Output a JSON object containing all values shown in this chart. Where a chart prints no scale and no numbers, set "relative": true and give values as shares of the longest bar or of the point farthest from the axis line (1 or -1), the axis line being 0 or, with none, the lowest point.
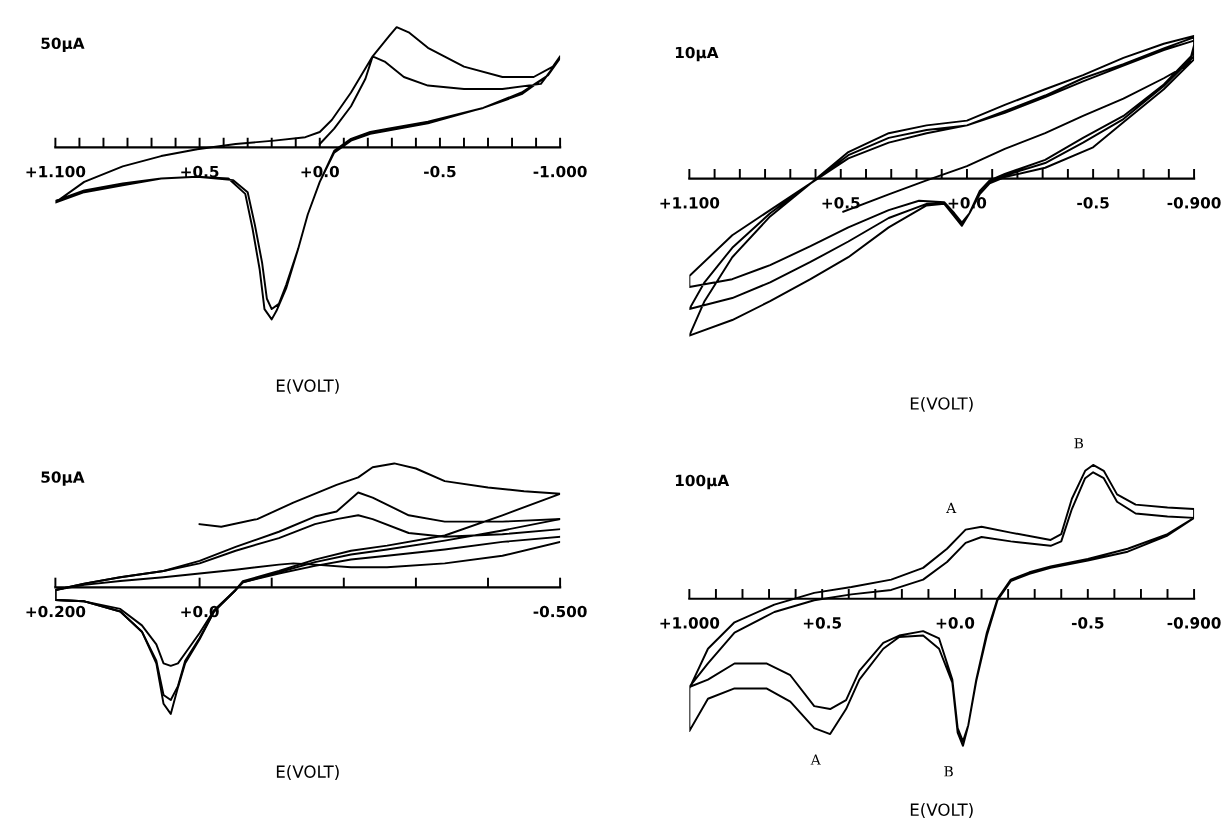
{
  "chart_data": [
    {
      "type": "line",
      "relative": true,
      "xlabel": "E(VOLT)",
      "xlim": [
        1.1,
        -1.0
      ],
      "xticks": [
        {
          "value": 1.1,
          "label": "+1.100"
        },
        {
          "value": 1.0,
          "label": null
        },
        {
          "value": 0.9,
          "label": null
        },
        {
          "value": 0.8,
          "label": null
        },
        {
          "value": 0.7,
          "label": null
        },
        {
          "value": 0.6,
          "label": null
        },
        {
          "value": 0.5,
          "label": "+0.5"
        },
        {
          "value": 0.4,
          "label": null
        },
        {
          "value": 0.3,
          "label": null
        },
        {
          "value": 0.2,
          "label": null
        },
        {
          "value": 0.1,
          "label": null
        },
        {
          "value": 0.0,
          "label": "+0.0"
        },
        {
          "value": -0.1,
          "label": null
        },
        {
          "value": -0.2,
          "label": null
        },
        {
          "value": -0.3,
          "label": null
        },
        {
          "value": -0.4,
          "label": null
        },
        {
          "value": -0.5,
          "label": "-0.5"
        },
        {
          "value": -0.6,
          "label": null
        },
        {
          "value": -0.7,
          "label": null
        },
        {
          "value": -0.8,
          "label": null
        },
        {
          "value": -0.9,
          "label": null
        },
        {
          "value": -1.0,
          "label": "-1.000"
        }
      ],
      "annotations": [
        "50µA"
      ],
      "series": [
        {
          "color": "#000000",
          "x": [
            0.0,
            -0.06,
            -0.13,
            -0.19,
            -0.22,
            -0.27,
            -0.35,
            -0.45,
            -0.6,
            -0.76,
            -0.92,
            -1.0,
            -0.95,
            -0.84,
            -0.68,
            -0.45,
            -0.29,
            -0.21,
            -0.13,
            -0.06,
            0.0,
            0.05,
            0.09,
            0.14,
            0.17,
            0.2,
            0.22,
            0.24,
            0.27,
            0.3,
            0.36,
            0.51,
            0.66,
            0.82,
            0.98,
            1.1,
            0.98,
            0.82,
            0.66,
            0.51,
            0.35,
            0.19,
            0.06,
            0.0,
            -0.05,
            -0.13,
            -0.22,
            -0.29,
            -0.32,
            -0.37,
            -0.45,
            -0.6,
            -0.76,
            -0.89,
            -0.97,
            -1.0,
            -0.95,
            -0.84,
            -0.68,
            -0.45,
            -0.29,
            -0.21,
            -0.13,
            -0.06,
            0.0,
            0.05,
            0.09,
            0.14,
            0.18,
            0.2,
            0.23,
            0.25,
            0.28,
            0.31,
            0.38,
            0.51,
            0.66,
            0.82,
            0.98,
            1.1
          ],
          "values": [
            0.02,
            0.11,
            0.24,
            0.4,
            0.53,
            0.5,
            0.41,
            0.36,
            0.34,
            0.34,
            0.37,
            0.52,
            0.42,
            0.31,
            0.23,
            0.14,
            0.1,
            0.08,
            0.04,
            -0.03,
            -0.2,
            -0.39,
            -0.59,
            -0.8,
            -0.91,
            -0.94,
            -0.88,
            -0.67,
            -0.45,
            -0.26,
            -0.19,
            -0.17,
            -0.18,
            -0.22,
            -0.26,
            -0.32,
            -0.2,
            -0.11,
            -0.05,
            -0.01,
            0.02,
            0.04,
            0.06,
            0.09,
            0.16,
            0.32,
            0.53,
            0.65,
            0.7,
            0.67,
            0.58,
            0.47,
            0.41,
            0.41,
            0.47,
            0.53,
            0.42,
            0.32,
            0.23,
            0.15,
            0.11,
            0.09,
            0.05,
            -0.02,
            -0.2,
            -0.39,
            -0.59,
            -0.82,
            -0.95,
            -1.0,
            -0.94,
            -0.71,
            -0.47,
            -0.27,
            -0.18,
            -0.17,
            -0.18,
            -0.21,
            -0.25,
            -0.31
          ]
        }
      ]
    },
    {
      "type": "line",
      "relative": true,
      "xlabel": "E(VOLT)",
      "xlim": [
        1.1,
        -0.9
      ],
      "xticks": [
        {
          "value": 1.1,
          "label": "+1.100"
        },
        {
          "value": 1.0,
          "label": null
        },
        {
          "value": 0.9,
          "label": null
        },
        {
          "value": 0.8,
          "label": null
        },
        {
          "value": 0.7,
          "label": null
        },
        {
          "value": 0.6,
          "label": null
        },
        {
          "value": 0.5,
          "label": "+0.5"
        },
        {
          "value": 0.4,
          "label": null
        },
        {
          "value": 0.3,
          "label": null
        },
        {
          "value": 0.2,
          "label": null
        },
        {
          "value": 0.1,
          "label": null
        },
        {
          "value": 0.0,
          "label": "+0.0"
        },
        {
          "value": -0.1,
          "label": null
        },
        {
          "value": -0.2,
          "label": null
        },
        {
          "value": -0.3,
          "label": null
        },
        {
          "value": -0.4,
          "label": null
        },
        {
          "value": -0.5,
          "label": "-0.5"
        },
        {
          "value": -0.6,
          "label": null
        },
        {
          "value": -0.7,
          "label": null
        },
        {
          "value": -0.8,
          "label": null
        },
        {
          "value": -0.9,
          "label": "-0.900"
        }
      ],
      "annotations": [
        "10µA"
      ],
      "series": [
        {
          "color": "#000000",
          "x": [
            0.49,
            0.31,
            0.16,
            0.0,
            -0.15,
            -0.31,
            -0.46,
            -0.62,
            -0.78,
            -0.88,
            -0.9,
            -0.9,
            -0.78,
            -0.62,
            -0.5,
            -0.31,
            -0.15,
            -0.09,
            -0.05,
            -0.01,
            0.02,
            0.05,
            0.09,
            0.19,
            0.31,
            0.47,
            0.62,
            0.78,
            0.93,
            1.1,
            1.1,
            0.93,
            0.78,
            0.62,
            0.47,
            0.31,
            0.16,
            0.0,
            -0.15,
            -0.31,
            -0.46,
            -0.62,
            -0.78,
            -0.9,
            -0.9,
            -0.78,
            -0.62,
            -0.46,
            -0.31,
            -0.15,
            -0.09,
            -0.05,
            -0.01,
            0.02,
            0.05,
            0.09,
            0.16,
            0.31,
            0.47,
            0.62,
            0.78,
            0.93,
            1.1,
            1.04,
            0.93,
            0.78,
            0.62,
            0.47,
            0.31,
            0.16,
            0.0,
            -0.15,
            -0.31,
            -0.46,
            -0.62,
            -0.78,
            -0.9,
            -0.9,
            -0.78,
            -0.62,
            -0.46,
            -0.31,
            -0.15,
            -0.09,
            -0.05,
            -0.01,
            0.02,
            0.05,
            0.09,
            0.16,
            0.31,
            0.47,
            0.62,
            0.78,
            0.93,
            1.1,
            1.04,
            0.93,
            0.78,
            0.62,
            0.47,
            0.31,
            0.16,
            0.0,
            -0.15,
            -0.31,
            -0.46,
            -0.62,
            -0.78,
            -0.9
          ],
          "values": [
            -0.21,
            -0.1,
            -0.01,
            0.08,
            0.19,
            0.29,
            0.4,
            0.51,
            0.64,
            0.73,
            0.85,
            0.76,
            0.57,
            0.36,
            0.2,
            0.07,
            0.01,
            -0.03,
            -0.1,
            -0.22,
            -0.28,
            -0.22,
            -0.15,
            -0.14,
            -0.2,
            -0.31,
            -0.43,
            -0.55,
            -0.64,
            -0.69,
            -0.62,
            -0.36,
            -0.2,
            -0.03,
            0.13,
            0.23,
            0.29,
            0.34,
            0.43,
            0.53,
            0.64,
            0.73,
            0.83,
            0.9,
            0.78,
            0.59,
            0.38,
            0.23,
            0.1,
            0.02,
            -0.02,
            -0.09,
            -0.22,
            -0.29,
            -0.23,
            -0.15,
            -0.16,
            -0.25,
            -0.4,
            -0.53,
            -0.66,
            -0.76,
            -0.83,
            -0.66,
            -0.44,
            -0.22,
            -0.03,
            0.15,
            0.26,
            0.31,
            0.34,
            0.42,
            0.52,
            0.62,
            0.72,
            0.82,
            0.88,
            0.8,
            0.6,
            0.4,
            0.26,
            0.12,
            0.03,
            -0.01,
            -0.08,
            -0.22,
            -0.3,
            -0.24,
            -0.16,
            -0.17,
            -0.31,
            -0.5,
            -0.64,
            -0.78,
            -0.9,
            -1.0,
            -0.78,
            -0.5,
            -0.24,
            -0.03,
            0.17,
            0.29,
            0.34,
            0.37,
            0.47,
            0.57,
            0.66,
            0.77,
            0.86,
            0.91
          ]
        }
      ]
    },
    {
      "type": "line",
      "relative": true,
      "xlabel": "E(VOLT)",
      "xlim": [
        0.2,
        -0.5
      ],
      "xticks": [
        {
          "value": 0.2,
          "label": "+0.200"
        },
        {
          "value": 0.0,
          "label": "+0.0"
        },
        {
          "value": -0.1,
          "label": null
        },
        {
          "value": -0.2,
          "label": null
        },
        {
          "value": -0.3,
          "label": null
        },
        {
          "value": -0.4,
          "label": null
        },
        {
          "value": -0.5,
          "label": "-0.500"
        }
      ],
      "annotations": [
        "50µA"
      ],
      "series": [
        {
          "color": "#000000",
          "x": [
            0.0,
            -0.03,
            -0.08,
            -0.13,
            -0.19,
            -0.22,
            -0.24,
            -0.27,
            -0.3,
            -0.34,
            -0.4,
            -0.45,
            -0.5,
            -0.42,
            -0.34,
            -0.26,
            -0.21,
            -0.16,
            -0.11,
            -0.06,
            -0.05,
            -0.02,
            0.0,
            0.02,
            0.03,
            0.04,
            0.05,
            0.06,
            0.08,
            0.11,
            0.16,
            0.2,
            0.2,
            0.16,
            0.11,
            0.05,
            0.0,
            -0.05,
            -0.11,
            -0.16,
            -0.19,
            -0.22,
            -0.24,
            -0.29,
            -0.34,
            -0.42,
            -0.5
          ],
          "values": [
            0.5,
            0.48,
            0.54,
            0.67,
            0.81,
            0.87,
            0.95,
            0.98,
            0.94,
            0.84,
            0.79,
            0.76,
            0.74,
            0.57,
            0.41,
            0.33,
            0.29,
            0.22,
            0.13,
            0.05,
            -0.02,
            -0.19,
            -0.41,
            -0.6,
            -0.79,
            -1.0,
            -0.92,
            -0.6,
            -0.35,
            -0.19,
            -0.11,
            -0.1,
            -0.02,
            0.03,
            0.08,
            0.13,
            0.21,
            0.32,
            0.44,
            0.56,
            0.6,
            0.75,
            0.71,
            0.57,
            0.52,
            0.52,
            0.54
          ]
        },
        {
          "color": "#000000",
          "x": [
            -0.5,
            -0.42,
            -0.34,
            -0.26,
            -0.21,
            -0.16,
            -0.11,
            -0.06,
            -0.05,
            -0.02,
            0.0,
            0.02,
            0.03,
            0.04,
            0.05,
            0.06,
            0.08,
            0.11,
            0.16,
            0.2,
            0.2,
            0.16,
            0.11,
            0.05,
            0.0,
            -0.05,
            -0.11,
            -0.16,
            -0.19,
            -0.22,
            -0.24,
            -0.29,
            -0.34,
            -0.42,
            -0.5
          ],
          "values": [
            0.54,
            0.45,
            0.37,
            0.3,
            0.26,
            0.2,
            0.12,
            0.04,
            -0.02,
            -0.19,
            -0.4,
            -0.58,
            -0.78,
            -0.89,
            -0.85,
            -0.58,
            -0.35,
            -0.19,
            -0.11,
            -0.1,
            -0.02,
            0.03,
            0.08,
            0.13,
            0.19,
            0.29,
            0.39,
            0.5,
            0.54,
            0.57,
            0.54,
            0.43,
            0.4,
            0.42,
            0.46
          ]
        },
        {
          "color": "#000000",
          "x": [
            -0.5,
            -0.42,
            -0.34,
            -0.26,
            -0.21,
            -0.16,
            -0.11,
            -0.06,
            -0.05,
            -0.02,
            0.0,
            0.02,
            0.03,
            0.04,
            0.05,
            0.06,
            0.08,
            0.11,
            0.16,
            0.2,
            0.2,
            0.16,
            0.11,
            0.05,
            0.0,
            -0.05,
            -0.11,
            -0.13,
            -0.16,
            -0.21,
            -0.26,
            -0.34,
            -0.42,
            -0.5
          ],
          "values": [
            0.4,
            0.36,
            0.3,
            0.25,
            0.22,
            0.17,
            0.11,
            0.04,
            -0.02,
            -0.18,
            -0.36,
            -0.52,
            -0.6,
            -0.62,
            -0.6,
            -0.45,
            -0.3,
            -0.17,
            -0.11,
            -0.1,
            -0.02,
            0.02,
            0.05,
            0.08,
            0.11,
            0.14,
            0.18,
            0.19,
            0.18,
            0.16,
            0.16,
            0.19,
            0.25,
            0.36
          ]
        }
      ]
    },
    {
      "type": "line",
      "relative": true,
      "xlabel": "E(VOLT)",
      "xlim": [
        1.0,
        -0.9
      ],
      "xticks": [
        {
          "value": 1.0,
          "label": "+1.000"
        },
        {
          "value": 0.9,
          "label": null
        },
        {
          "value": 0.8,
          "label": null
        },
        {
          "value": 0.7,
          "label": null
        },
        {
          "value": 0.6,
          "label": null
        },
        {
          "value": 0.5,
          "label": "+0.5"
        },
        {
          "value": 0.4,
          "label": null
        },
        {
          "value": 0.3,
          "label": null
        },
        {
          "value": 0.2,
          "label": null
        },
        {
          "value": 0.1,
          "label": null
        },
        {
          "value": 0.0,
          "label": "+0.0"
        },
        {
          "value": -0.1,
          "label": null
        },
        {
          "value": -0.2,
          "label": null
        },
        {
          "value": -0.3,
          "label": null
        },
        {
          "value": -0.4,
          "label": null
        },
        {
          "value": -0.5,
          "label": "-0.5"
        },
        {
          "value": -0.6,
          "label": null
        },
        {
          "value": -0.7,
          "label": null
        },
        {
          "value": -0.8,
          "label": null
        },
        {
          "value": -0.9,
          "label": "-0.900"
        }
      ],
      "annotations": [
        "100µA",
        {
          "text": "A",
          "x": -0.04,
          "y": 0.47
        },
        {
          "text": "B",
          "x": -0.52,
          "y": 0.91
        },
        {
          "text": "A",
          "x": 0.47,
          "y": -0.92
        },
        {
          "text": "B",
          "x": -0.03,
          "y": -1.0
        }
      ],
      "series": [
        {
          "color": "#000000",
          "x": [
            1.0,
            0.93,
            0.83,
            0.68,
            0.53,
            0.39,
            0.24,
            0.12,
            0.03,
            -0.04,
            -0.1,
            -0.21,
            -0.36,
            -0.4,
            -0.44,
            -0.49,
            -0.52,
            -0.56,
            -0.61,
            -0.68,
            -0.8,
            -0.9,
            -0.9,
            -0.8,
            -0.65,
            -0.5,
            -0.36,
            -0.28,
            -0.21,
            -0.16,
            -0.12,
            -0.08,
            -0.05,
            -0.03,
            -0.01,
            0.01,
            0.06,
            0.12,
            0.21,
            0.27,
            0.36,
            0.41,
            0.47,
            0.53,
            0.62,
            0.71,
            0.83,
            0.93,
            1.0,
            1.0,
            0.93,
            0.83,
            0.68,
            0.53,
            0.39,
            0.24,
            0.12,
            0.03,
            -0.04,
            -0.1,
            -0.21,
            -0.36,
            -0.4,
            -0.44,
            -0.49,
            -0.52,
            -0.56,
            -0.61,
            -0.68,
            -0.8,
            -0.9,
            -0.8,
            -0.65,
            -0.5,
            -0.36,
            -0.28,
            -0.21,
            -0.16,
            -0.12,
            -0.08,
            -0.05,
            -0.03,
            -0.01,
            0.01,
            0.06,
            0.12,
            0.21,
            0.27,
            0.36,
            0.41,
            0.47,
            0.53,
            0.62,
            0.71,
            0.83,
            0.93,
            1.0
          ],
          "values": [
            -0.61,
            -0.34,
            -0.16,
            -0.04,
            0.04,
            0.08,
            0.13,
            0.21,
            0.34,
            0.47,
            0.49,
            0.45,
            0.4,
            0.44,
            0.68,
            0.87,
            0.91,
            0.87,
            0.71,
            0.64,
            0.62,
            0.61,
            0.55,
            0.44,
            0.34,
            0.27,
            0.22,
            0.18,
            0.13,
            0.0,
            -0.23,
            -0.55,
            -0.86,
            -1.0,
            -0.91,
            -0.57,
            -0.34,
            -0.25,
            -0.26,
            -0.34,
            -0.55,
            -0.75,
            -0.92,
            -0.88,
            -0.7,
            -0.61,
            -0.61,
            -0.68,
            -0.9,
            -0.6,
            -0.44,
            -0.23,
            -0.09,
            -0.01,
            0.03,
            0.06,
            0.13,
            0.25,
            0.38,
            0.42,
            0.39,
            0.36,
            0.39,
            0.61,
            0.82,
            0.86,
            0.82,
            0.66,
            0.58,
            0.56,
            0.55,
            0.43,
            0.32,
            0.26,
            0.21,
            0.17,
            0.12,
            -0.01,
            -0.25,
            -0.56,
            -0.86,
            -0.97,
            -0.88,
            -0.55,
            -0.27,
            -0.22,
            -0.25,
            -0.3,
            -0.49,
            -0.69,
            -0.75,
            -0.73,
            -0.52,
            -0.44,
            -0.44,
            -0.55,
            -0.6
          ]
        }
      ]
    }
  ]
}
